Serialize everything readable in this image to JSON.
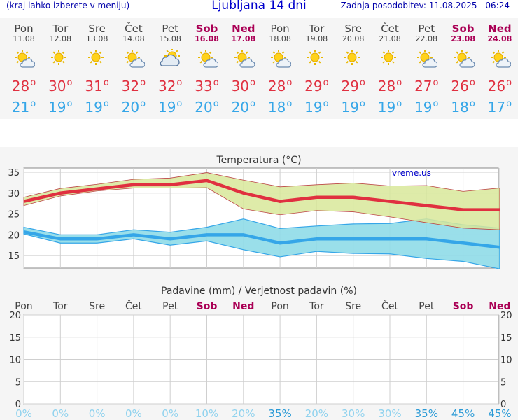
{
  "header": {
    "left_note": "(kraj lahko izberete v meniju)",
    "title": "Ljubljana 14 dni",
    "updated": "Zadnja posodobitev: 11.08.2025 - 06:24"
  },
  "days": [
    {
      "name": "Pon",
      "date": "11.08",
      "weekend": false,
      "icon": "sun-behind-cloud-icon",
      "tmax": "28",
      "tmin": "21"
    },
    {
      "name": "Tor",
      "date": "12.08",
      "weekend": false,
      "icon": "sun-icon",
      "tmax": "30",
      "tmin": "19"
    },
    {
      "name": "Sre",
      "date": "13.08",
      "weekend": false,
      "icon": "sun-icon",
      "tmax": "31",
      "tmin": "19"
    },
    {
      "name": "Čet",
      "date": "14.08",
      "weekend": false,
      "icon": "sun-behind-cloud-icon",
      "tmax": "32",
      "tmin": "20"
    },
    {
      "name": "Pet",
      "date": "15.08",
      "weekend": false,
      "icon": "cloud-with-sun-icon",
      "tmax": "32",
      "tmin": "19"
    },
    {
      "name": "Sob",
      "date": "16.08",
      "weekend": true,
      "icon": "sun-behind-cloud-icon",
      "tmax": "33",
      "tmin": "20"
    },
    {
      "name": "Ned",
      "date": "17.08",
      "weekend": true,
      "icon": "sun-behind-cloud-icon",
      "tmax": "30",
      "tmin": "20"
    },
    {
      "name": "Pon",
      "date": "18.08",
      "weekend": false,
      "icon": "sun-behind-cloud-icon",
      "tmax": "28",
      "tmin": "18"
    },
    {
      "name": "Tor",
      "date": "19.08",
      "weekend": false,
      "icon": "sun-icon",
      "tmax": "29",
      "tmin": "19"
    },
    {
      "name": "Sre",
      "date": "20.08",
      "weekend": false,
      "icon": "sun-icon",
      "tmax": "29",
      "tmin": "19"
    },
    {
      "name": "Čet",
      "date": "21.08",
      "weekend": false,
      "icon": "sun-icon",
      "tmax": "28",
      "tmin": "19"
    },
    {
      "name": "Pet",
      "date": "22.08",
      "weekend": false,
      "icon": "sun-behind-cloud-icon",
      "tmax": "27",
      "tmin": "19"
    },
    {
      "name": "Sob",
      "date": "23.08",
      "weekend": true,
      "icon": "sun-behind-cloud-icon",
      "tmax": "26",
      "tmin": "18"
    },
    {
      "name": "Ned",
      "date": "24.08",
      "weekend": true,
      "icon": "sun-behind-cloud-icon",
      "tmax": "26",
      "tmin": "17"
    }
  ],
  "degree_symbol": "o",
  "colors": {
    "max": "#e03040",
    "min": "#35a6e8",
    "weekend": "#aa0055",
    "max_band": "#d8e89a",
    "min_band": "#8fdbe8",
    "watermark": "#0000cc"
  },
  "chart_data": [
    {
      "type": "line",
      "title": "Temperatura (°C)",
      "watermark": "vreme.us",
      "y_ticks": [
        "35",
        "30",
        "25",
        "20",
        "15"
      ],
      "ylim": [
        12,
        36
      ],
      "grid": true,
      "categories": [
        "11.08",
        "12.08",
        "13.08",
        "14.08",
        "15.08",
        "16.08",
        "17.08",
        "18.08",
        "19.08",
        "20.08",
        "21.08",
        "22.08",
        "23.08",
        "24.08"
      ],
      "series": [
        {
          "role": "max",
          "values": [
            28,
            30,
            31,
            32,
            32,
            33,
            30,
            28,
            29,
            29,
            28,
            27,
            26,
            26
          ],
          "band_low": [
            27,
            29.3,
            30.5,
            31.2,
            31.2,
            31.3,
            26.2,
            24.8,
            25.8,
            25.5,
            24.3,
            22.9,
            21.6,
            21.2
          ],
          "band_high": [
            29,
            31.1,
            32.1,
            33.3,
            33.6,
            34.9,
            33.1,
            31.5,
            32,
            32.4,
            31.7,
            31.8,
            30.4,
            31.2
          ]
        },
        {
          "role": "min",
          "values": [
            20.7,
            19,
            19,
            20,
            19,
            20,
            20,
            18,
            19,
            19,
            19,
            19,
            18,
            17
          ],
          "band_low": [
            20.2,
            18,
            18,
            19,
            17.5,
            18.5,
            16.4,
            14.7,
            16,
            15.5,
            15.4,
            14.3,
            13.6,
            11.8
          ],
          "band_high": [
            21.8,
            20,
            20,
            21.2,
            20.6,
            21.8,
            23.8,
            21.5,
            22.1,
            22.6,
            22.7,
            23.8,
            22.4,
            21.6
          ]
        }
      ]
    },
    {
      "type": "bar",
      "title": "Padavine (mm) / Verjetnost padavin (%)",
      "y_ticks": [
        "20",
        "15",
        "10",
        "5",
        "0"
      ],
      "ylim": [
        0,
        20
      ],
      "grid": true,
      "categories": [
        "11.08",
        "12.08",
        "13.08",
        "14.08",
        "15.08",
        "16.08",
        "17.08",
        "18.08",
        "19.08",
        "20.08",
        "21.08",
        "22.08",
        "23.08",
        "24.08"
      ],
      "values": [
        0,
        0,
        0,
        0,
        0,
        0,
        0,
        0,
        0,
        0,
        0,
        0,
        0,
        0
      ],
      "probability": [
        "0%",
        "0%",
        "0%",
        "0%",
        "0%",
        "10%",
        "20%",
        "35%",
        "20%",
        "30%",
        "30%",
        "35%",
        "45%",
        "45%"
      ]
    }
  ]
}
